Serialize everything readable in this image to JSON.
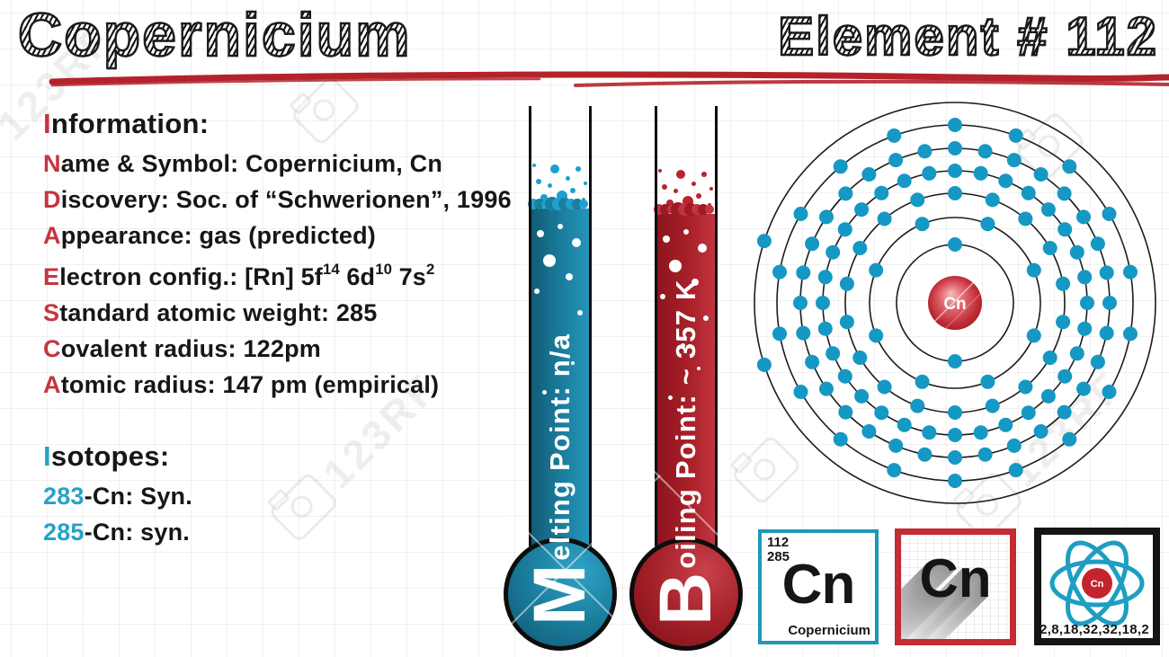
{
  "header": {
    "title": "Copernicium",
    "element_label": "Element # 112"
  },
  "info": {
    "heading_accent": "I",
    "heading_rest": "nformation:",
    "lines": [
      {
        "segments": [
          {
            "text": "N",
            "accent": "red"
          },
          {
            "text": "ame & Symbol: Copernicium, Cn"
          }
        ]
      },
      {
        "segments": [
          {
            "text": "D",
            "accent": "red"
          },
          {
            "text": "iscovery: Soc. of “Schwerionen”, 1996"
          }
        ]
      },
      {
        "segments": [
          {
            "text": "A",
            "accent": "red"
          },
          {
            "text": "ppearance: gas (predicted)"
          }
        ]
      },
      {
        "segments": [
          {
            "text": "E",
            "accent": "red"
          },
          {
            "text": "lectron config.: [Rn] 5f"
          },
          {
            "text": "14",
            "sup": true
          },
          {
            "text": " 6d"
          },
          {
            "text": "10",
            "sup": true
          },
          {
            "text": " 7s"
          },
          {
            "text": "2",
            "sup": true
          }
        ]
      },
      {
        "segments": [
          {
            "text": "S",
            "accent": "red"
          },
          {
            "text": "tandard atomic weight: 285"
          }
        ]
      },
      {
        "segments": [
          {
            "text": "C",
            "accent": "red"
          },
          {
            "text": "ovalent radius: 122pm"
          }
        ]
      },
      {
        "segments": [
          {
            "text": "A",
            "accent": "red"
          },
          {
            "text": "tomic radius: 147 pm (empirical)"
          }
        ]
      }
    ]
  },
  "isotopes": {
    "heading_accent": "I",
    "heading_rest": "sotopes:",
    "lines": [
      {
        "segments": [
          {
            "text": "283",
            "accent": "blue"
          },
          {
            "text": "-Cn: Syn."
          }
        ]
      },
      {
        "segments": [
          {
            "text": "285",
            "accent": "blue"
          },
          {
            "text": "-Cn: syn."
          }
        ]
      }
    ]
  },
  "thermometers": [
    {
      "id": "melting",
      "big_letter": "M",
      "label_rest": "elting Point: n/a",
      "theme": "blue"
    },
    {
      "id": "boiling",
      "big_letter": "B",
      "label_rest": "oiling Point: ~ 357 K",
      "theme": "red"
    }
  ],
  "atom": {
    "symbol": "Cn",
    "shells": [
      2,
      8,
      18,
      32,
      32,
      18,
      2
    ]
  },
  "cards": {
    "periodic_tile": {
      "number": "112",
      "weight": "285",
      "symbol": "Cn",
      "name": "Copernicium"
    },
    "symbol_tile": {
      "symbol": "Cn"
    },
    "atom_tile": {
      "symbol": "Cn",
      "shells_label": "2,8,18,32,32,18,2"
    }
  },
  "watermark": {
    "text": "123RF"
  },
  "colors": {
    "accent_red": "#c5353e",
    "accent_blue": "#27a2c9",
    "underline_red": "#b4232b",
    "thermo_blue": "#1b7f9f",
    "thermo_blue_speck": "#1ba0d2",
    "thermo_red": "#a82028",
    "thermo_red_speck": "#b8242f",
    "electron": "#1598c4",
    "nucleus_red": "#c4242e",
    "periodic_tile_border": "#1f97b8",
    "symbol_tile_border": "#c32b35",
    "atom_tile_border": "#141414",
    "orbit_teal": "#1d9ec2"
  }
}
